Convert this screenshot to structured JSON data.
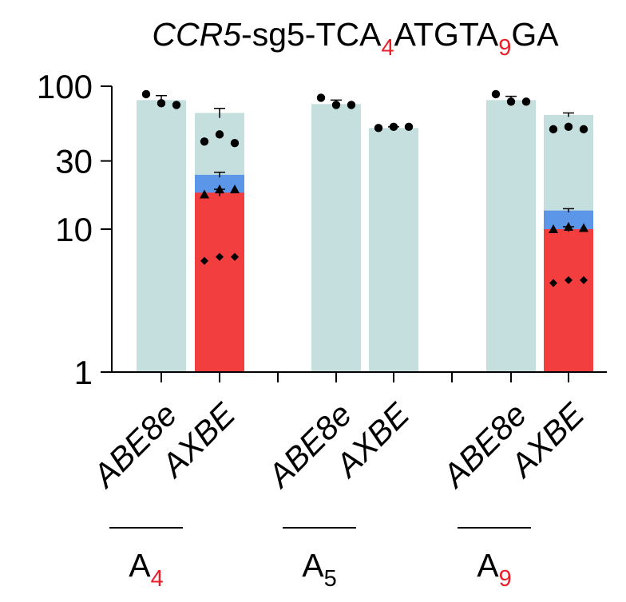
{
  "chart_data": {
    "type": "bar",
    "title": {
      "gene": "CCR5",
      "rest": "-sg5-TCA",
      "sub1": "4",
      "mid": "ATGTA",
      "sub2": "9",
      "end": "GA"
    },
    "yscale": "log",
    "ylim": [
      1,
      100
    ],
    "yticks": [
      {
        "value": 1,
        "label": "1"
      },
      {
        "value": 10,
        "label": "10"
      },
      {
        "value": 30,
        "label": "30"
      },
      {
        "value": 100,
        "label": "100"
      }
    ],
    "groups": [
      {
        "base": "A",
        "sub": "4",
        "sub_red": true
      },
      {
        "base": "A",
        "sub": "5",
        "sub_red": false
      },
      {
        "base": "A",
        "sub": "9",
        "sub_red": true
      }
    ],
    "bar_labels": [
      "ABE8e",
      "AXBE",
      "ABE8e",
      "AXBE",
      "ABE8e",
      "AXBE"
    ],
    "colors": {
      "total": "#c5dfde",
      "middle": "#5b96e8",
      "bottom": "#f23e3e",
      "accent_text": "#e8202a"
    },
    "bars": [
      {
        "label": "ABE8e",
        "group": 0,
        "total": 80,
        "total_err": 6,
        "total_points": [
          88,
          76,
          74
        ]
      },
      {
        "label": "AXBE",
        "group": 0,
        "total": 65,
        "total_err": 5,
        "total_points": [
          41,
          46,
          40
        ],
        "middle": 24,
        "middle_err": 1,
        "bottom": 18,
        "bottom_err": 1,
        "triangle_points": [
          17.5,
          19,
          19
        ],
        "diamond_points": [
          6.0,
          6.4,
          6.4
        ]
      },
      {
        "label": "ABE8e",
        "group": 1,
        "total": 75,
        "total_err": 5,
        "total_points": [
          83,
          74,
          74
        ]
      },
      {
        "label": "AXBE",
        "group": 1,
        "total": 51,
        "total_err": 1,
        "total_points": [
          51,
          52,
          52
        ]
      },
      {
        "label": "ABE8e",
        "group": 2,
        "total": 80,
        "total_err": 5,
        "total_points": [
          88,
          78,
          78
        ]
      },
      {
        "label": "AXBE",
        "group": 2,
        "total": 63,
        "total_err": 2,
        "total_points": [
          50,
          52,
          50
        ],
        "middle": 13.5,
        "middle_err": 0.4,
        "bottom": 10,
        "bottom_err": 0.4,
        "triangle_points": [
          10,
          10.4,
          10.2
        ],
        "diamond_points": [
          4.2,
          4.4,
          4.4
        ]
      }
    ]
  }
}
